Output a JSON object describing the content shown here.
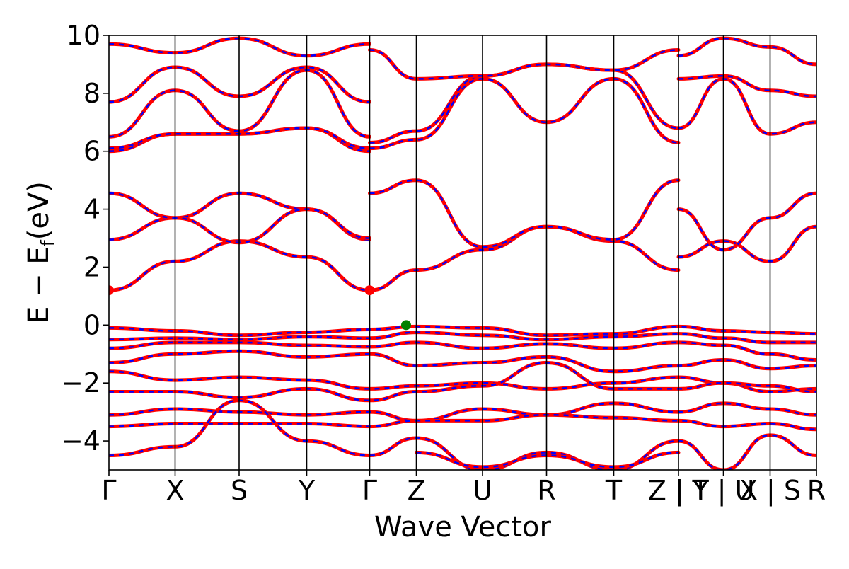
{
  "chart_data": {
    "type": "line",
    "title": "",
    "xlabel": "Wave Vector",
    "ylabel": "E − E_f (eV)",
    "ylabel_main": "E  −  E",
    "ylabel_sub": "f",
    "ylabel_unit": "(eV)",
    "ylim": [
      -5,
      10
    ],
    "yticks": [
      -4,
      -2,
      0,
      2,
      4,
      6,
      8,
      10
    ],
    "ytick_labels": [
      "−4",
      "−2",
      "0",
      "2",
      "4",
      "6",
      "8",
      "10"
    ],
    "grid": false,
    "legend": "none",
    "kpath": [
      {
        "label": "Γ",
        "pos": 0.0
      },
      {
        "label": "X",
        "pos": 0.0935
      },
      {
        "label": "S",
        "pos": 0.184
      },
      {
        "label": "Y",
        "pos": 0.2795
      },
      {
        "label": "Γ",
        "pos": 0.3685
      },
      {
        "label": "Z",
        "pos": 0.4345
      },
      {
        "label": "U",
        "pos": 0.528
      },
      {
        "label": "R",
        "pos": 0.6185
      },
      {
        "label": "T",
        "pos": 0.7135
      },
      {
        "label": "Z | Y",
        "pos": 0.805
      },
      {
        "label": "T | U",
        "pos": 0.8685
      },
      {
        "label": "X | S",
        "pos": 0.9345
      },
      {
        "label": "R",
        "pos": 1.0
      }
    ],
    "series_style": [
      {
        "name": "",
        "color": "#ff0000",
        "width": 5
      },
      {
        "name": "",
        "color": "#0000ff",
        "width": 2.5,
        "dash": "7 7"
      }
    ],
    "markers": [
      {
        "x": 0.0,
        "y": 1.2,
        "color": "#ff0000"
      },
      {
        "x": 0.3685,
        "y": 1.2,
        "color": "#ff0000"
      },
      {
        "x": 0.42,
        "y": 0.0,
        "color": "#008000"
      }
    ],
    "bands": [
      {
        "x": [
          0,
          0.0935,
          0.184,
          0.2795,
          0.3685
        ],
        "y": [
          1.2,
          2.2,
          2.9,
          2.35,
          1.2
        ]
      },
      {
        "x": [
          0.3685,
          0.4345,
          0.528,
          0.6185,
          0.7135,
          0.805
        ],
        "y": [
          1.2,
          1.9,
          2.6,
          3.4,
          2.9,
          1.9
        ]
      },
      {
        "x": [
          0,
          0.0935,
          0.184,
          0.2795,
          0.3685
        ],
        "y": [
          2.95,
          3.7,
          4.55,
          4.0,
          2.95
        ]
      },
      {
        "x": [
          0.3685,
          0.4345,
          0.528,
          0.6185,
          0.7135,
          0.805
        ],
        "y": [
          4.55,
          5.0,
          2.7,
          3.4,
          2.95,
          5.0
        ]
      },
      {
        "x": [
          0,
          0.0935,
          0.184,
          0.2795,
          0.3685
        ],
        "y": [
          4.55,
          3.7,
          2.85,
          4.0,
          3.0
        ]
      },
      {
        "x": [
          0,
          0.0935,
          0.184,
          0.2795,
          0.3685
        ],
        "y": [
          6.0,
          6.6,
          6.6,
          6.8,
          6.0
        ]
      },
      {
        "x": [
          0,
          0.0935,
          0.184,
          0.2795,
          0.3685
        ],
        "y": [
          6.1,
          6.6,
          6.6,
          6.8,
          6.1
        ]
      },
      {
        "x": [
          0,
          0.0935,
          0.184,
          0.2795,
          0.3685
        ],
        "y": [
          6.5,
          8.1,
          6.7,
          8.8,
          6.5
        ]
      },
      {
        "x": [
          0,
          0.0935,
          0.184,
          0.2795,
          0.3685
        ],
        "y": [
          7.7,
          8.9,
          7.9,
          8.9,
          7.7
        ]
      },
      {
        "x": [
          0,
          0.0935,
          0.184,
          0.2795,
          0.3685
        ],
        "y": [
          9.7,
          9.4,
          9.9,
          9.3,
          9.7
        ]
      },
      {
        "x": [
          0.3685,
          0.4345,
          0.528,
          0.6185,
          0.7135,
          0.805
        ],
        "y": [
          6.1,
          6.4,
          8.5,
          7.0,
          8.5,
          6.3
        ]
      },
      {
        "x": [
          0.3685,
          0.4345,
          0.528,
          0.6185,
          0.7135,
          0.805
        ],
        "y": [
          6.3,
          6.7,
          8.6,
          9.0,
          8.8,
          6.8
        ]
      },
      {
        "x": [
          0.3685,
          0.4345,
          0.528,
          0.6185,
          0.7135,
          0.805
        ],
        "y": [
          9.5,
          8.5,
          8.6,
          9.0,
          8.8,
          9.5
        ]
      },
      {
        "x": [
          0.805,
          0.8685,
          0.9345,
          1.0
        ],
        "y": [
          2.35,
          2.9,
          2.2,
          3.4
        ]
      },
      {
        "x": [
          0.805,
          0.8685,
          0.9345,
          1.0
        ],
        "y": [
          4.0,
          2.6,
          3.7,
          4.55
        ]
      },
      {
        "x": [
          0.805,
          0.8685,
          0.9345,
          1.0
        ],
        "y": [
          6.8,
          8.5,
          6.6,
          7.0
        ]
      },
      {
        "x": [
          0.805,
          0.8685,
          0.9345,
          1.0
        ],
        "y": [
          8.5,
          8.6,
          8.1,
          7.9
        ]
      },
      {
        "x": [
          0.805,
          0.8685,
          0.9345,
          1.0
        ],
        "y": [
          9.3,
          9.9,
          9.6,
          9.0
        ]
      },
      {
        "x": [
          0,
          0.0935,
          0.184,
          0.2795,
          0.3685,
          0.4345,
          0.528,
          0.6185,
          0.7135,
          0.805,
          0.8685,
          0.9345,
          1.0
        ],
        "y": [
          -0.1,
          -0.2,
          -0.35,
          -0.25,
          -0.15,
          -0.05,
          -0.1,
          -0.35,
          -0.3,
          -0.05,
          -0.2,
          -0.25,
          -0.3
        ]
      },
      {
        "x": [
          0,
          0.0935,
          0.184,
          0.2795,
          0.3685,
          0.4345,
          0.528,
          0.6185,
          0.7135,
          0.805,
          0.8685,
          0.9345,
          1.0
        ],
        "y": [
          -0.5,
          -0.45,
          -0.5,
          -0.4,
          -0.45,
          -0.25,
          -0.35,
          -0.5,
          -0.4,
          -0.3,
          -0.45,
          -0.6,
          -0.6
        ]
      },
      {
        "x": [
          0,
          0.0935,
          0.184,
          0.2795,
          0.3685,
          0.4345,
          0.528,
          0.6185,
          0.7135,
          0.805,
          0.8685,
          0.9345,
          1.0
        ],
        "y": [
          -0.8,
          -0.6,
          -0.6,
          -0.7,
          -0.75,
          -0.6,
          -0.8,
          -0.65,
          -0.8,
          -0.6,
          -0.7,
          -1.0,
          -1.2
        ]
      },
      {
        "x": [
          0,
          0.0935,
          0.184,
          0.2795,
          0.3685,
          0.4345,
          0.528,
          0.6185,
          0.7135,
          0.805,
          0.8685,
          0.9345,
          1.0
        ],
        "y": [
          -1.3,
          -1.0,
          -0.9,
          -1.1,
          -1.0,
          -1.4,
          -1.3,
          -1.1,
          -1.6,
          -1.4,
          -1.2,
          -1.5,
          -1.4
        ]
      },
      {
        "x": [
          0,
          0.0935,
          0.184,
          0.2795,
          0.3685,
          0.4345,
          0.528,
          0.6185,
          0.7135,
          0.805,
          0.8685,
          0.9345,
          1.0
        ],
        "y": [
          -1.6,
          -1.9,
          -1.8,
          -1.9,
          -2.2,
          -2.1,
          -2.0,
          -2.2,
          -2.0,
          -1.8,
          -2.0,
          -2.3,
          -2.2
        ]
      },
      {
        "x": [
          0,
          0.0935,
          0.184,
          0.2795,
          0.3685,
          0.4345,
          0.528,
          0.6185,
          0.7135,
          0.805,
          0.8685,
          0.9345,
          1.0
        ],
        "y": [
          -2.3,
          -2.3,
          -2.5,
          -2.2,
          -2.6,
          -2.3,
          -2.1,
          -1.3,
          -2.2,
          -2.2,
          -2.0,
          -2.1,
          -2.3
        ]
      },
      {
        "x": [
          0,
          0.0935,
          0.184,
          0.2795,
          0.3685,
          0.4345,
          0.528,
          0.6185,
          0.7135,
          0.805,
          0.8685,
          0.9345,
          1.0
        ],
        "y": [
          -3.1,
          -2.9,
          -3.0,
          -3.1,
          -3.0,
          -3.3,
          -2.9,
          -3.1,
          -2.7,
          -3.0,
          -2.7,
          -2.9,
          -3.1
        ]
      },
      {
        "x": [
          0,
          0.0935,
          0.184,
          0.2795,
          0.3685,
          0.4345,
          0.528,
          0.6185,
          0.7135,
          0.805,
          0.8685,
          0.9345,
          1.0
        ],
        "y": [
          -3.5,
          -3.4,
          -3.4,
          -3.4,
          -3.5,
          -3.3,
          -3.3,
          -3.1,
          -3.2,
          -3.3,
          -3.5,
          -3.4,
          -3.6
        ]
      },
      {
        "x": [
          0,
          0.0935,
          0.184,
          0.2795,
          0.3685,
          0.4345,
          0.528,
          0.6185,
          0.7135,
          0.805,
          0.8685,
          0.9345,
          1.0
        ],
        "y": [
          -4.5,
          -4.2,
          -2.6,
          -4.0,
          -4.5,
          -3.9,
          -5.0,
          -4.4,
          -5.0,
          -4.0,
          -5.0,
          -3.8,
          -4.5
        ]
      },
      {
        "x": [
          0.4345,
          0.528,
          0.6185,
          0.7135,
          0.805
        ],
        "y": [
          -4.4,
          -4.9,
          -4.5,
          -4.9,
          -4.4
        ]
      }
    ]
  }
}
